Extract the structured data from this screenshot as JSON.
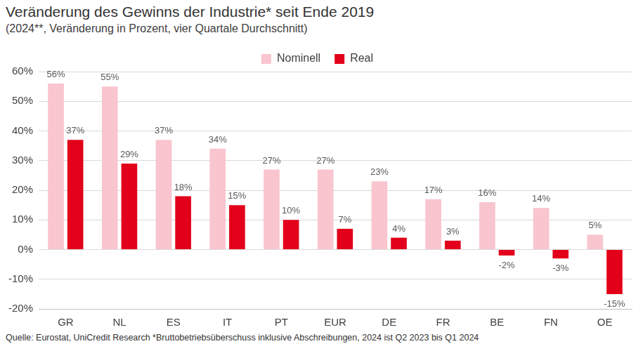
{
  "chart_data": {
    "type": "bar",
    "title": "Veränderung des Gewinns der Industrie* seit Ende 2019",
    "subtitle": "(2024**, Veränderung in Prozent, vier Quartale Durchschnitt)",
    "annotations": [
      "Quelle: Eurostat, UniCredit Research *Bruttobetriebsüberschuss inklusive Abschreibungen, 2024 ist Q2 2023 bis Q1 2024"
    ],
    "categories": [
      "GR",
      "NL",
      "ES",
      "IT",
      "PT",
      "EUR",
      "DE",
      "FR",
      "BE",
      "FN",
      "OE"
    ],
    "series": [
      {
        "name": "Nominell",
        "color": "#f9c5cf",
        "values": [
          56,
          55,
          37,
          34,
          27,
          27,
          23,
          17,
          16,
          14,
          5
        ],
        "value_labels": [
          "56%",
          "55%",
          "37%",
          "34%",
          "27%",
          "27%",
          "23%",
          "17%",
          "16%",
          "14%",
          "5%"
        ]
      },
      {
        "name": "Real",
        "color": "#e2001a",
        "values": [
          37,
          29,
          18,
          15,
          10,
          7,
          4,
          3,
          -2,
          -3,
          -15
        ],
        "value_labels": [
          "37%",
          "29%",
          "18%",
          "15%",
          "10%",
          "7%",
          "4%",
          "3%",
          "-2%",
          "-3%",
          "-15%"
        ]
      }
    ],
    "ylim": [
      -20,
      60
    ],
    "yticks": [
      {
        "value": -20,
        "label": "-20%"
      },
      {
        "value": -10,
        "label": "-10%"
      },
      {
        "value": 0,
        "label": "0%"
      },
      {
        "value": 10,
        "label": "10%"
      },
      {
        "value": 20,
        "label": "20%"
      },
      {
        "value": 30,
        "label": "30%"
      },
      {
        "value": 40,
        "label": "40%"
      },
      {
        "value": 50,
        "label": "50%"
      },
      {
        "value": 60,
        "label": "60%"
      }
    ],
    "grid": true,
    "legend": "top",
    "data_labels": true
  }
}
